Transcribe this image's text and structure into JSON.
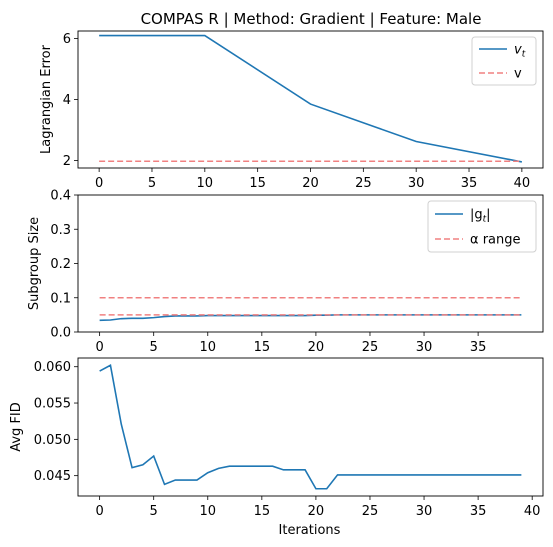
{
  "title": "COMPAS R | Method: Gradient | Feature: Male",
  "colors": {
    "series": "#1f77b4",
    "reference": "#f08080"
  },
  "chart_data": [
    {
      "type": "line",
      "ylabel": "Lagrangian Error",
      "xlabel": "",
      "xlim": [
        -2,
        42
      ],
      "ylim": [
        1.75,
        6.25
      ],
      "xticks": [
        "0",
        "5",
        "10",
        "15",
        "20",
        "25",
        "30",
        "35",
        "40"
      ],
      "yticks": [
        "2",
        "4",
        "6"
      ],
      "xtick_values": [
        0,
        5,
        10,
        15,
        20,
        25,
        30,
        35,
        40
      ],
      "ytick_values": [
        2,
        4,
        6
      ],
      "legend": "top-right",
      "series": [
        {
          "name": "$v_t$",
          "legend_label": "v",
          "legend_sub": "t",
          "style": "solid",
          "x": [
            0,
            10,
            20,
            30,
            40
          ],
          "y": [
            6.1,
            6.1,
            3.85,
            2.62,
            1.95
          ]
        },
        {
          "name": "v",
          "legend_label": "v",
          "style": "dashed",
          "x": [
            0,
            40
          ],
          "y": [
            1.97,
            1.97
          ]
        }
      ]
    },
    {
      "type": "line",
      "ylabel": "Subgroup Size",
      "xlabel": "",
      "xlim": [
        -2,
        41
      ],
      "ylim": [
        0,
        0.4
      ],
      "xticks": [
        "0",
        "5",
        "10",
        "15",
        "20",
        "25",
        "30",
        "35"
      ],
      "yticks": [
        "0.0",
        "0.1",
        "0.2",
        "0.3",
        "0.4"
      ],
      "xtick_values": [
        0,
        5,
        10,
        15,
        20,
        25,
        30,
        35
      ],
      "ytick_values": [
        0,
        0.1,
        0.2,
        0.3,
        0.4
      ],
      "legend": "top-right",
      "series": [
        {
          "name": "|g_t|",
          "legend_label": "|g",
          "legend_sub": "t",
          "legend_tail": "|",
          "style": "solid",
          "x": [
            0,
            1,
            2,
            3,
            4,
            5,
            6,
            7,
            8,
            9,
            10,
            11,
            12,
            13,
            14,
            15,
            16,
            17,
            18,
            19,
            20,
            21,
            22,
            23,
            24,
            25,
            26,
            27,
            28,
            29,
            30,
            31,
            32,
            33,
            34,
            35,
            36,
            37,
            38,
            39
          ],
          "y": [
            0.034,
            0.035,
            0.039,
            0.04,
            0.04,
            0.042,
            0.045,
            0.047,
            0.047,
            0.047,
            0.048,
            0.048,
            0.048,
            0.048,
            0.048,
            0.048,
            0.048,
            0.048,
            0.048,
            0.048,
            0.049,
            0.049,
            0.05,
            0.05,
            0.05,
            0.05,
            0.05,
            0.05,
            0.05,
            0.05,
            0.05,
            0.05,
            0.05,
            0.05,
            0.05,
            0.05,
            0.05,
            0.05,
            0.05,
            0.05
          ]
        },
        {
          "name": "α range (upper)",
          "legend_label": "α range",
          "style": "dashed",
          "x": [
            0,
            39
          ],
          "y": [
            0.1,
            0.1
          ]
        },
        {
          "name": "α range (lower)",
          "style": "dashed",
          "x": [
            0,
            39
          ],
          "y": [
            0.05,
            0.05
          ]
        }
      ]
    },
    {
      "type": "line",
      "ylabel": "Avg FID",
      "xlabel": "Iterations",
      "xlim": [
        -2,
        41
      ],
      "ylim": [
        0.0422,
        0.0612
      ],
      "xticks": [
        "0",
        "5",
        "10",
        "15",
        "20",
        "25",
        "30",
        "35",
        "40"
      ],
      "yticks": [
        "0.045",
        "0.050",
        "0.055",
        "0.060"
      ],
      "xtick_values": [
        0,
        5,
        10,
        15,
        20,
        25,
        30,
        35,
        40
      ],
      "ytick_values": [
        0.045,
        0.05,
        0.055,
        0.06
      ],
      "legend": "none",
      "series": [
        {
          "name": "Avg FID",
          "style": "solid",
          "x": [
            0,
            1,
            2,
            3,
            4,
            5,
            6,
            7,
            8,
            9,
            10,
            11,
            12,
            13,
            14,
            15,
            16,
            17,
            18,
            19,
            20,
            21,
            22,
            23,
            24,
            25,
            26,
            27,
            28,
            29,
            30,
            31,
            32,
            33,
            34,
            35,
            36,
            37,
            38,
            39
          ],
          "y": [
            0.0594,
            0.0602,
            0.0521,
            0.0461,
            0.0465,
            0.0477,
            0.0438,
            0.0444,
            0.0444,
            0.0444,
            0.0454,
            0.046,
            0.0463,
            0.0463,
            0.0463,
            0.0463,
            0.0463,
            0.0458,
            0.0458,
            0.0458,
            0.0432,
            0.0432,
            0.0451,
            0.0451,
            0.0451,
            0.0451,
            0.0451,
            0.0451,
            0.0451,
            0.0451,
            0.0451,
            0.0451,
            0.0451,
            0.0451,
            0.0451,
            0.0451,
            0.0451,
            0.0451,
            0.0451,
            0.0451
          ]
        }
      ]
    }
  ]
}
